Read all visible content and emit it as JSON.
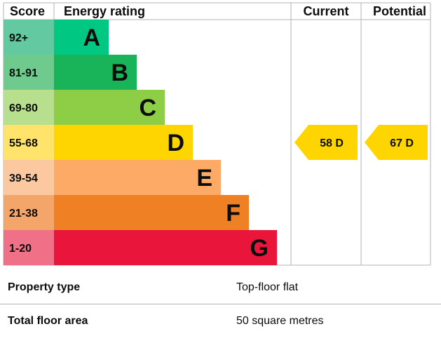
{
  "chart_data": {
    "type": "bar",
    "headers": {
      "score": "Score",
      "rating": "Energy rating",
      "current": "Current",
      "potential": "Potential"
    },
    "bands": [
      {
        "letter": "A",
        "score": "92+",
        "color": "#00c781",
        "score_color": "#63c9a1"
      },
      {
        "letter": "B",
        "score": "81-91",
        "color": "#19b459",
        "score_color": "#6fca8e"
      },
      {
        "letter": "C",
        "score": "69-80",
        "color": "#8dce46",
        "score_color": "#b7df8e"
      },
      {
        "letter": "D",
        "score": "55-68",
        "color": "#ffd500",
        "score_color": "#ffe36a"
      },
      {
        "letter": "E",
        "score": "39-54",
        "color": "#fcaa65",
        "score_color": "#fcc8a0"
      },
      {
        "letter": "F",
        "score": "21-38",
        "color": "#ef8023",
        "score_color": "#f4a56a"
      },
      {
        "letter": "G",
        "score": "1-20",
        "color": "#e9153b",
        "score_color": "#f07088"
      }
    ],
    "current": {
      "value": 58,
      "band": "D",
      "label": "58  D"
    },
    "potential": {
      "value": 67,
      "band": "D",
      "label": "67  D"
    }
  },
  "property": [
    {
      "label": "Property type",
      "value": "Top-floor flat"
    },
    {
      "label": "Total floor area",
      "value": "50 square metres"
    }
  ]
}
